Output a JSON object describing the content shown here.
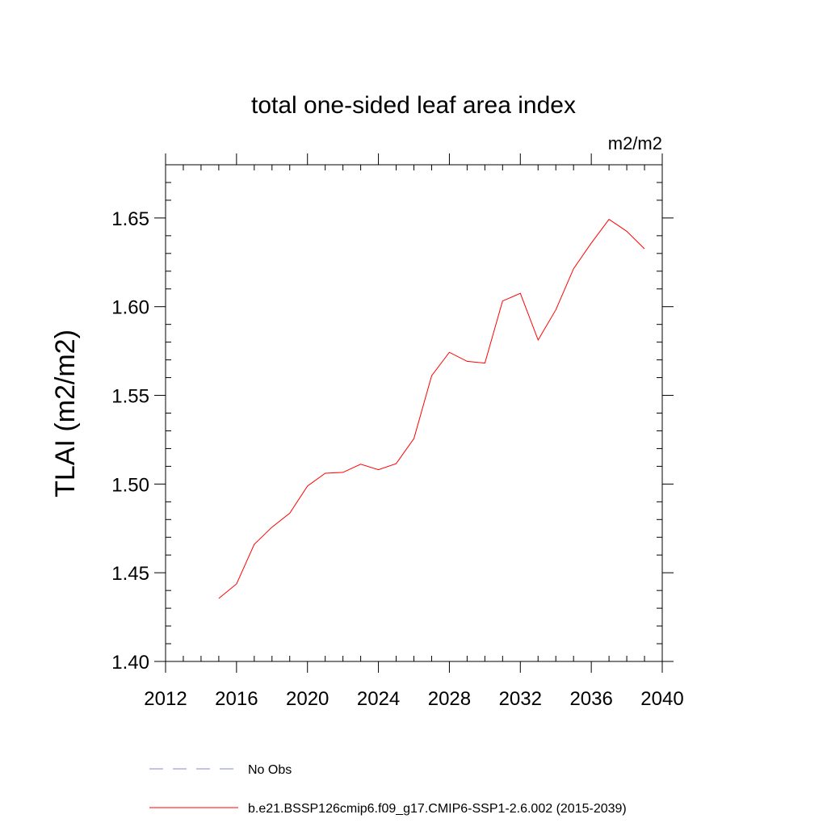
{
  "chart_data": {
    "type": "line",
    "title": "total one-sided leaf area index",
    "units_label": "m2/m2",
    "ylabel": "TLAI  (m2/m2)",
    "xlabel": "",
    "xlim": [
      2012,
      2040
    ],
    "ylim": [
      1.4,
      1.68
    ],
    "x_ticks": [
      2012,
      2016,
      2020,
      2024,
      2028,
      2032,
      2036,
      2040
    ],
    "y_ticks": [
      1.4,
      1.45,
      1.5,
      1.55,
      1.6,
      1.65
    ],
    "y_tick_labels": [
      "1.40",
      "1.45",
      "1.50",
      "1.55",
      "1.60",
      "1.65"
    ],
    "x_minor_step": 1,
    "y_minor_step": 0.01,
    "grid": false,
    "legend_placement": "bottom",
    "series": [
      {
        "name": "b.e21.BSSP126cmip6.f09_g17.CMIP6-SSP1-2.6.002 (2015-2039)",
        "color": "#ff0000",
        "style": "solid",
        "x": [
          2015,
          2016,
          2017,
          2018,
          2019,
          2020,
          2021,
          2022,
          2023,
          2024,
          2025,
          2026,
          2027,
          2028,
          2029,
          2030,
          2031,
          2032,
          2033,
          2034,
          2035,
          2036,
          2037,
          2038,
          2039
        ],
        "y": [
          1.4355,
          1.4437,
          1.466,
          1.4757,
          1.4836,
          1.4989,
          1.5061,
          1.5066,
          1.5112,
          1.5081,
          1.5115,
          1.5256,
          1.5611,
          1.5743,
          1.5692,
          1.5682,
          1.6032,
          1.6075,
          1.5812,
          1.5982,
          1.6214,
          1.6358,
          1.6492,
          1.6425,
          1.6326
        ]
      }
    ],
    "legend": [
      {
        "label": "No Obs",
        "color": "#8888cc",
        "style": "dashed"
      },
      {
        "label": "b.e21.BSSP126cmip6.f09_g17.CMIP6-SSP1-2.6.002 (2015-2039)",
        "color": "#ff0000",
        "style": "solid"
      }
    ]
  }
}
